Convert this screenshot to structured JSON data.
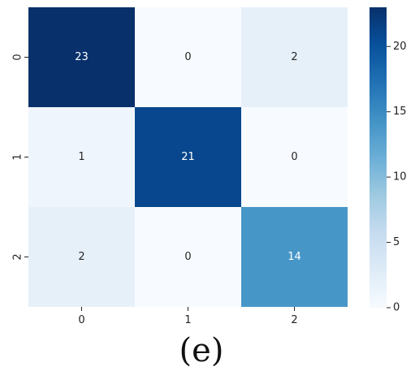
{
  "chart_data": {
    "type": "heatmap",
    "rows": [
      "0",
      "1",
      "2"
    ],
    "columns": [
      "0",
      "1",
      "2"
    ],
    "values": [
      [
        23,
        0,
        2
      ],
      [
        1,
        21,
        0
      ],
      [
        2,
        0,
        14
      ]
    ],
    "colormap": "Blues",
    "vmin": 0,
    "vmax": 23,
    "colorbar_ticks": [
      0,
      5,
      10,
      15,
      20
    ],
    "colorbar_tick_labels": [
      "0",
      "5",
      "10",
      "15",
      "20"
    ],
    "caption": "(e)"
  }
}
